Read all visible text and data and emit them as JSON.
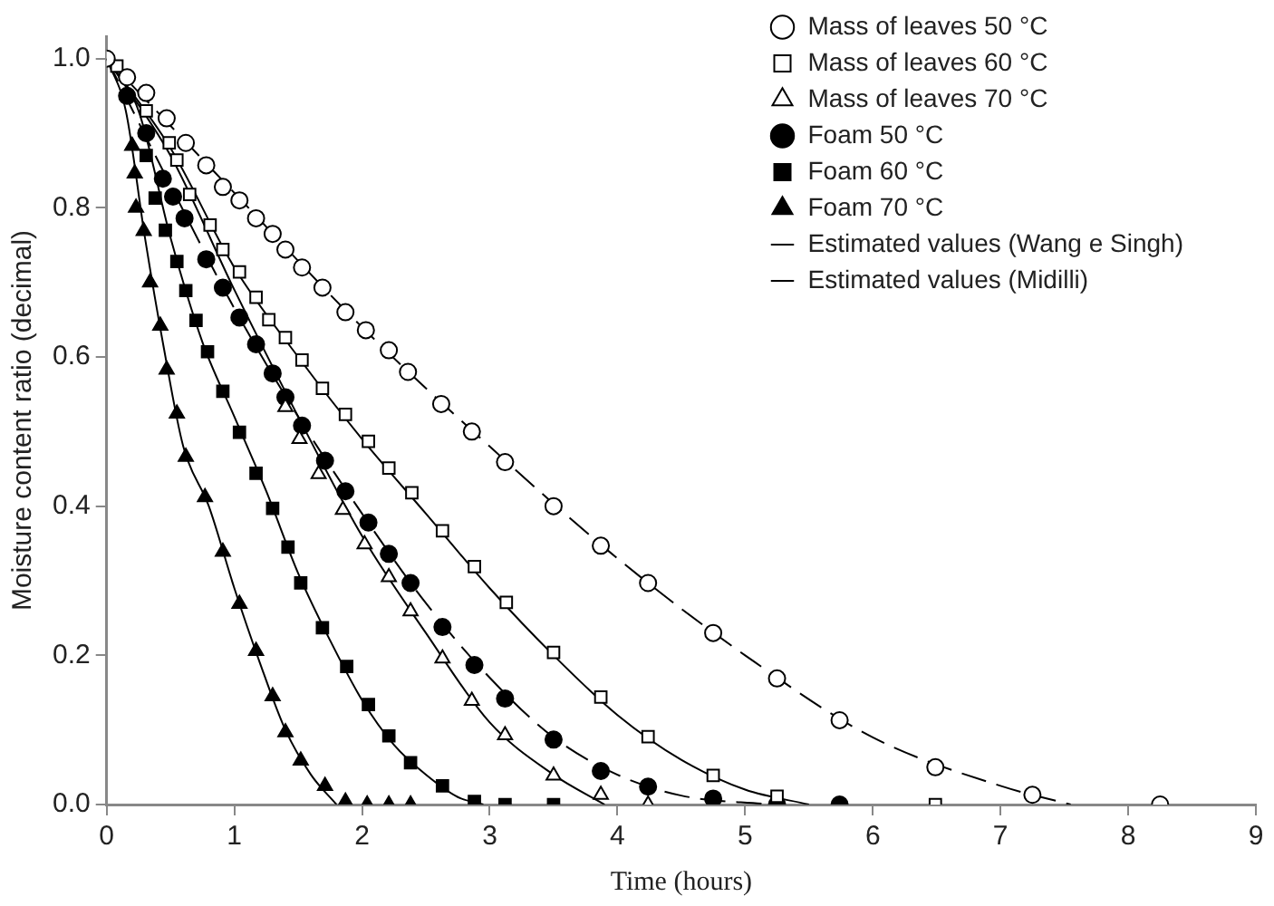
{
  "chart_data": {
    "type": "scatter",
    "xlabel": "Time (hours)",
    "ylabel": "Moisture content ratio (decimal)",
    "xlim": [
      0,
      9
    ],
    "xticks": [
      0,
      1,
      2,
      3,
      4,
      5,
      6,
      7,
      8,
      9
    ],
    "ylim": [
      0,
      1.03
    ],
    "yticks": [
      {
        "value": 0,
        "label": "0.0"
      },
      {
        "value": 0.2,
        "label": "0.2"
      },
      {
        "value": 0.4,
        "label": "0.4"
      },
      {
        "value": 0.6,
        "label": "0.6"
      },
      {
        "value": 0.8,
        "label": "0.8"
      },
      {
        "value": 1,
        "label": "1.0"
      }
    ],
    "grid": false,
    "legend": "top right",
    "series": [
      {
        "name": "Mass of leaves 50 °C",
        "marker": "circle",
        "color": "#ffffff",
        "x": [
          0,
          0.16,
          0.31,
          0.47,
          0.62,
          0.78,
          0.91,
          1.04,
          1.17,
          1.3,
          1.4,
          1.53,
          1.69,
          1.87,
          2.03,
          2.21,
          2.36,
          2.62,
          2.86,
          3.12,
          3.5,
          3.87,
          4.24,
          4.75,
          5.25,
          5.74,
          6.49,
          7.25,
          8.25
        ],
        "values": [
          1,
          0.975,
          0.954,
          0.92,
          0.887,
          0.857,
          0.828,
          0.81,
          0.786,
          0.765,
          0.744,
          0.72,
          0.693,
          0.66,
          0.636,
          0.609,
          0.58,
          0.537,
          0.5,
          0.459,
          0.4,
          0.347,
          0.297,
          0.23,
          0.169,
          0.113,
          0.05,
          0.013,
          0
        ]
      },
      {
        "name": "Mass of leaves 60 °C",
        "marker": "square",
        "color": "#ffffff",
        "x": [
          0.08,
          0.31,
          0.49,
          0.55,
          0.65,
          0.81,
          0.91,
          1.04,
          1.17,
          1.27,
          1.4,
          1.53,
          1.69,
          1.87,
          2.05,
          2.21,
          2.39,
          2.63,
          2.88,
          3.13,
          3.5,
          3.87,
          4.24,
          4.75,
          5.25,
          6.49
        ],
        "values": [
          0.99,
          0.93,
          0.887,
          0.864,
          0.818,
          0.777,
          0.744,
          0.714,
          0.68,
          0.65,
          0.626,
          0.596,
          0.558,
          0.523,
          0.487,
          0.451,
          0.418,
          0.367,
          0.319,
          0.271,
          0.204,
          0.144,
          0.091,
          0.039,
          0.011,
          0
        ]
      },
      {
        "name": "Mass of leaves 70 °C",
        "marker": "triangle",
        "color": "#ffffff",
        "x": [
          1.4,
          1.51,
          1.66,
          1.85,
          2.02,
          2.21,
          2.38,
          2.63,
          2.86,
          3.12,
          3.5,
          3.87,
          4.24
        ],
        "values": [
          0.533,
          0.49,
          0.443,
          0.395,
          0.349,
          0.305,
          0.259,
          0.196,
          0.139,
          0.093,
          0.039,
          0.013,
          0
        ]
      },
      {
        "name": "Foam 50 °C",
        "marker": "circle",
        "color": "#000000",
        "x": [
          0.16,
          0.31,
          0.44,
          0.52,
          0.61,
          0.78,
          0.91,
          1.04,
          1.17,
          1.3,
          1.4,
          1.53,
          1.71,
          1.87,
          2.05,
          2.21,
          2.38,
          2.63,
          2.88,
          3.12,
          3.5,
          3.87,
          4.24,
          4.75,
          5.25,
          5.74
        ],
        "values": [
          0.95,
          0.9,
          0.839,
          0.815,
          0.786,
          0.731,
          0.693,
          0.653,
          0.617,
          0.578,
          0.546,
          0.508,
          0.461,
          0.42,
          0.378,
          0.336,
          0.297,
          0.238,
          0.187,
          0.142,
          0.087,
          0.045,
          0.024,
          0.008,
          0,
          0
        ]
      },
      {
        "name": "Foam 60 °C",
        "marker": "square",
        "color": "#000000",
        "x": [
          0.31,
          0.38,
          0.46,
          0.55,
          0.62,
          0.7,
          0.79,
          0.91,
          1.04,
          1.17,
          1.3,
          1.42,
          1.52,
          1.69,
          1.88,
          2.05,
          2.21,
          2.38,
          2.63,
          2.88,
          3.12,
          3.5
        ],
        "values": [
          0.87,
          0.813,
          0.77,
          0.728,
          0.689,
          0.649,
          0.607,
          0.554,
          0.499,
          0.444,
          0.397,
          0.345,
          0.297,
          0.237,
          0.185,
          0.134,
          0.092,
          0.056,
          0.025,
          0.004,
          0,
          0
        ]
      },
      {
        "name": "Foam 70 °C",
        "marker": "triangle",
        "color": "#000000",
        "x": [
          0.2,
          0.22,
          0.23,
          0.29,
          0.34,
          0.42,
          0.47,
          0.55,
          0.62,
          0.77,
          0.91,
          1.04,
          1.17,
          1.3,
          1.4,
          1.52,
          1.71,
          1.87,
          2.04,
          2.21,
          2.38
        ],
        "values": [
          0.883,
          0.846,
          0.8,
          0.769,
          0.7,
          0.642,
          0.583,
          0.524,
          0.466,
          0.412,
          0.339,
          0.269,
          0.206,
          0.145,
          0.097,
          0.059,
          0.025,
          0.004,
          0,
          0,
          0
        ]
      },
      {
        "name": "Estimated values (Wang e Singh)",
        "type": "line",
        "marker": "none",
        "line_style": "dashed",
        "color": "#000000",
        "x": [
          0,
          1,
          2,
          3,
          4,
          5,
          6,
          7,
          7.55
        ],
        "values": [
          1,
          0.82,
          0.64,
          0.48,
          0.33,
          0.2,
          0.09,
          0.025,
          0
        ]
      },
      {
        "type": "line",
        "marker": "none",
        "line_style": "dashed",
        "color": "#000000",
        "x": [
          0,
          0.5,
          1,
          1.5,
          2,
          2.5,
          3,
          3.5,
          4,
          4.5,
          5.2
        ],
        "values": [
          1,
          0.83,
          0.665,
          0.52,
          0.39,
          0.27,
          0.17,
          0.09,
          0.04,
          0.012,
          0
        ]
      },
      {
        "name": "Estimated values (Midilli)",
        "type": "line",
        "marker": "none",
        "line_style": "solid",
        "color": "#000000",
        "x": [
          0,
          0.5,
          1,
          1.5,
          2,
          2.5,
          3,
          3.5,
          4,
          4.5,
          5,
          5.5
        ],
        "values": [
          1,
          0.88,
          0.72,
          0.6,
          0.49,
          0.39,
          0.29,
          0.2,
          0.12,
          0.06,
          0.02,
          0
        ]
      },
      {
        "type": "line",
        "marker": "none",
        "line_style": "solid",
        "color": "#000000",
        "x": [
          0,
          0.5,
          1,
          1.5,
          2,
          2.5,
          3,
          3.5,
          3.9
        ],
        "values": [
          1,
          0.87,
          0.69,
          0.52,
          0.36,
          0.23,
          0.11,
          0.04,
          0
        ]
      },
      {
        "type": "line",
        "marker": "none",
        "line_style": "solid",
        "color": "#000000",
        "x": [
          0,
          0.25,
          0.5,
          0.75,
          1,
          1.25,
          1.5,
          1.75,
          2,
          2.25,
          2.5,
          2.75,
          2.95
        ],
        "values": [
          1,
          0.93,
          0.76,
          0.62,
          0.52,
          0.42,
          0.31,
          0.22,
          0.14,
          0.08,
          0.04,
          0.01,
          0
        ]
      },
      {
        "type": "line",
        "marker": "none",
        "line_style": "solid",
        "color": "#000000",
        "x": [
          0,
          0.15,
          0.3,
          0.45,
          0.6,
          0.8,
          1,
          1.2,
          1.4,
          1.6,
          1.8
        ],
        "values": [
          1,
          0.93,
          0.76,
          0.61,
          0.48,
          0.4,
          0.29,
          0.19,
          0.1,
          0.04,
          0
        ]
      }
    ]
  }
}
